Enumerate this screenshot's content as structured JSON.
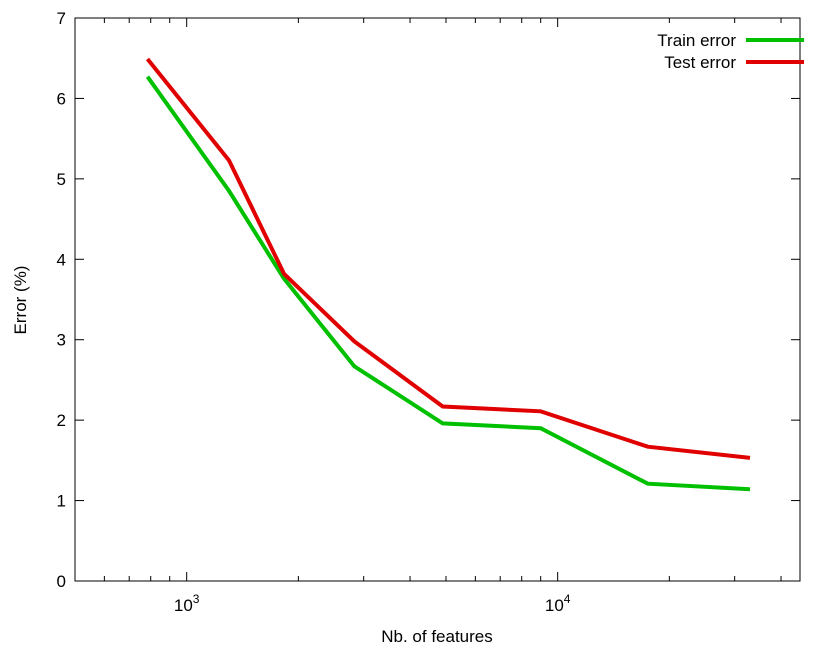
{
  "chart_data": {
    "type": "line",
    "xlabel": "Nb. of features",
    "ylabel": "Error (%)",
    "xscale": "log",
    "xlim": [
      500,
      45000
    ],
    "ylim": [
      0,
      7
    ],
    "grid": false,
    "legend_position": "top-right",
    "y_ticks": [
      0,
      1,
      2,
      3,
      4,
      5,
      6,
      7
    ],
    "x_ticks": [
      {
        "base": "10",
        "exp": "3",
        "value": 1000
      },
      {
        "base": "10",
        "exp": "4",
        "value": 10000
      }
    ],
    "series": [
      {
        "name": "Train error",
        "color": "#00c000",
        "x": [
          784,
          1300,
          1830,
          2830,
          4900,
          9000,
          17500,
          33000
        ],
        "y": [
          6.27,
          4.85,
          3.76,
          2.67,
          1.96,
          1.9,
          1.21,
          1.14
        ]
      },
      {
        "name": "Test error",
        "color": "#e00000",
        "x": [
          784,
          1300,
          1830,
          2830,
          4900,
          9000,
          17500,
          33000
        ],
        "y": [
          6.49,
          5.23,
          3.82,
          2.98,
          2.17,
          2.11,
          1.67,
          1.53
        ]
      }
    ]
  }
}
